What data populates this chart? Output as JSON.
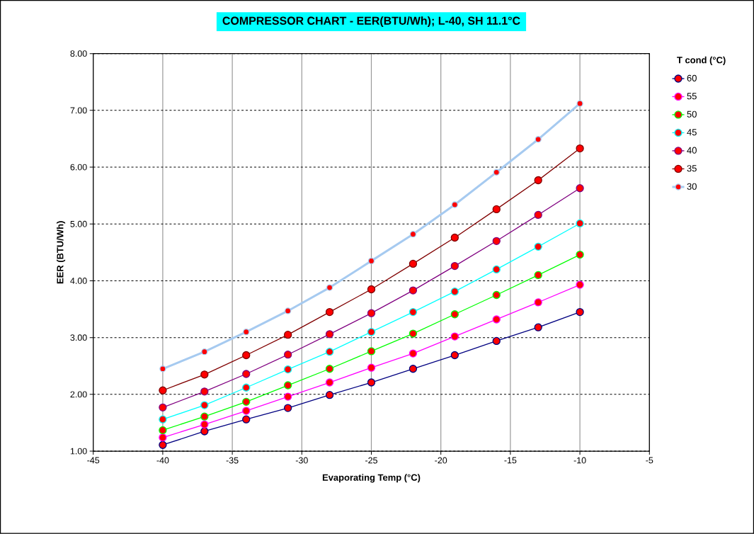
{
  "chart_data": {
    "type": "line",
    "title": "COMPRESSOR CHART - EER(BTU/Wh);  L-40,  SH 11.1°C",
    "xlabel": "Evaporating Temp (°C)",
    "ylabel": "EER (BTU/Wh)",
    "legend_title": "T cond (°C)",
    "x": [
      -40,
      -37,
      -34,
      -31,
      -28,
      -25,
      -22,
      -19,
      -16,
      -13,
      -10
    ],
    "series": [
      {
        "name": "60",
        "color": "#000080",
        "values": [
          1.11,
          1.35,
          1.56,
          1.76,
          1.99,
          2.21,
          2.45,
          2.69,
          2.94,
          3.18,
          3.45
        ]
      },
      {
        "name": "55",
        "color": "#ff00ff",
        "values": [
          1.24,
          1.47,
          1.71,
          1.96,
          2.21,
          2.47,
          2.72,
          3.02,
          3.32,
          3.62,
          3.93
        ]
      },
      {
        "name": "50",
        "color": "#00ff00",
        "values": [
          1.37,
          1.61,
          1.87,
          2.16,
          2.45,
          2.76,
          3.07,
          3.41,
          3.75,
          4.1,
          4.46
        ]
      },
      {
        "name": "45",
        "color": "#00ffff",
        "values": [
          1.56,
          1.81,
          2.12,
          2.44,
          2.75,
          3.1,
          3.45,
          3.81,
          4.2,
          4.6,
          5.01
        ]
      },
      {
        "name": "40",
        "color": "#800080",
        "values": [
          1.77,
          2.05,
          2.36,
          2.7,
          3.06,
          3.43,
          3.83,
          4.26,
          4.7,
          5.16,
          5.63
        ]
      },
      {
        "name": "35",
        "color": "#800000",
        "values": [
          2.07,
          2.35,
          2.69,
          3.05,
          3.45,
          3.85,
          4.3,
          4.76,
          5.26,
          5.77,
          6.33
        ]
      },
      {
        "name": "30",
        "color": "#a6caf0",
        "values": [
          2.45,
          2.75,
          3.1,
          3.47,
          3.88,
          4.35,
          4.82,
          5.34,
          5.91,
          6.49,
          7.12
        ]
      }
    ],
    "xlim": [
      -45,
      -5
    ],
    "xticks": [
      -45,
      -40,
      -35,
      -30,
      -25,
      -20,
      -15,
      -10,
      -5
    ],
    "ylim": [
      1,
      8
    ],
    "yticks": [
      {
        "value": 1,
        "label": "1.00"
      },
      {
        "value": 2,
        "label": "2.00"
      },
      {
        "value": 3,
        "label": "3.00"
      },
      {
        "value": 4,
        "label": "4.00"
      },
      {
        "value": 5,
        "label": "5.00"
      },
      {
        "value": 6,
        "label": "6.00"
      },
      {
        "value": 7,
        "label": "7.00"
      },
      {
        "value": 8,
        "label": "8.00"
      }
    ],
    "grid": true,
    "legend": "right",
    "marker": "circle",
    "line_style": "solid"
  }
}
